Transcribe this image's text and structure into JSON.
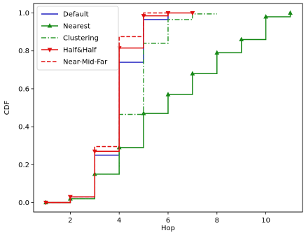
{
  "chart_data": {
    "type": "line",
    "title": "",
    "xlabel": "Hop",
    "ylabel": "CDF",
    "xlim": [
      0.5,
      11.5
    ],
    "ylim": [
      -0.05,
      1.05
    ],
    "xticks": [
      2,
      4,
      6,
      8,
      10
    ],
    "yticks": [
      0.0,
      0.2,
      0.4,
      0.6,
      0.8,
      1.0
    ],
    "xtick_labels": [
      "2",
      "4",
      "6",
      "8",
      "10"
    ],
    "ytick_labels": [
      "0.0",
      "0.2",
      "0.4",
      "0.6",
      "0.8",
      "1.0"
    ],
    "grid": false,
    "legend_position": "top-left",
    "series": [
      {
        "name": "Default",
        "color": "#1f1fbf",
        "dash": "solid",
        "marker": "none",
        "step": "post",
        "x": [
          1,
          2,
          3,
          4,
          5,
          6
        ],
        "y": [
          0.0,
          0.03,
          0.25,
          0.74,
          0.965,
          1.0
        ]
      },
      {
        "name": "Nearest",
        "color": "#158815",
        "dash": "solid",
        "marker": "triangle-up",
        "step": "post",
        "x": [
          1,
          2,
          3,
          4,
          5,
          6,
          7,
          8,
          9,
          10,
          11
        ],
        "y": [
          0.0,
          0.02,
          0.15,
          0.29,
          0.47,
          0.57,
          0.68,
          0.79,
          0.86,
          0.98,
          1.0
        ]
      },
      {
        "name": "Clustering",
        "color": "#2e9a2e",
        "dash": "dashdot",
        "marker": "none",
        "step": "post",
        "x": [
          1,
          2,
          3,
          4,
          5,
          6,
          7,
          8
        ],
        "y": [
          0.0,
          0.02,
          0.15,
          0.465,
          0.84,
          0.965,
          0.995,
          0.995
        ]
      },
      {
        "name": "Half&Half",
        "color": "#e01010",
        "dash": "solid",
        "marker": "triangle-down",
        "step": "post",
        "x": [
          1,
          2,
          3,
          4,
          5,
          6,
          7
        ],
        "y": [
          0.0,
          0.03,
          0.27,
          0.815,
          0.985,
          1.0,
          1.0
        ]
      },
      {
        "name": "Near-Mid-Far",
        "color": "#e01010",
        "dash": "dashed",
        "marker": "none",
        "step": "post",
        "x": [
          1,
          2,
          3,
          4,
          5,
          6
        ],
        "y": [
          0.0,
          0.03,
          0.295,
          0.875,
          1.0,
          1.0
        ]
      }
    ]
  }
}
